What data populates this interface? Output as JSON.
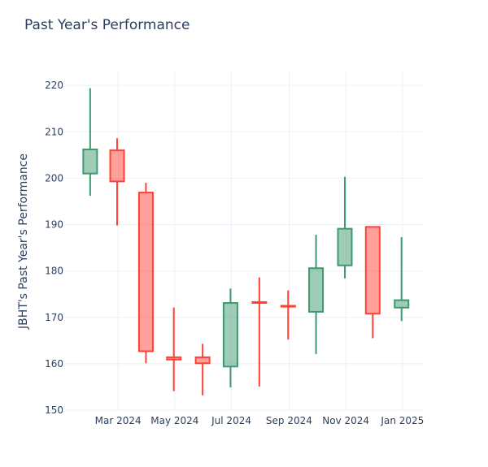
{
  "title": "Past Year's Performance",
  "chart_data": {
    "type": "candlestick",
    "title": "Past Year's Performance",
    "xlabel": "",
    "ylabel": "JBHT's Past Year's Performance",
    "ylim": [
      150,
      223
    ],
    "yticks": [
      150,
      160,
      170,
      180,
      190,
      200,
      210,
      220
    ],
    "xlim": [
      "2024-01-04",
      "2025-01-23"
    ],
    "xticks": [
      {
        "date": "2024-03-01",
        "label": "Mar 2024"
      },
      {
        "date": "2024-05-01",
        "label": "May 2024"
      },
      {
        "date": "2024-07-01",
        "label": "Jul 2024"
      },
      {
        "date": "2024-09-01",
        "label": "Sep 2024"
      },
      {
        "date": "2024-11-01",
        "label": "Nov 2024"
      },
      {
        "date": "2025-01-01",
        "label": "Jan 2025"
      }
    ],
    "grid": true,
    "increasing_color": "#3D9970",
    "decreasing_color": "#FF4136",
    "candles": [
      {
        "date": "2024-01-31",
        "open": 201.0,
        "high": 219.4,
        "low": 196.2,
        "close": 206.2
      },
      {
        "date": "2024-02-29",
        "open": 206.0,
        "high": 208.6,
        "low": 189.8,
        "close": 199.3
      },
      {
        "date": "2024-03-31",
        "open": 196.9,
        "high": 199.0,
        "low": 160.1,
        "close": 162.7
      },
      {
        "date": "2024-04-30",
        "open": 161.4,
        "high": 172.1,
        "low": 154.1,
        "close": 160.9
      },
      {
        "date": "2024-05-31",
        "open": 161.4,
        "high": 164.3,
        "low": 153.2,
        "close": 160.1
      },
      {
        "date": "2024-06-30",
        "open": 159.4,
        "high": 176.2,
        "low": 154.9,
        "close": 173.1
      },
      {
        "date": "2024-07-31",
        "open": 173.3,
        "high": 178.6,
        "low": 155.1,
        "close": 173.1
      },
      {
        "date": "2024-08-31",
        "open": 172.5,
        "high": 175.8,
        "low": 165.2,
        "close": 172.3
      },
      {
        "date": "2024-09-30",
        "open": 171.2,
        "high": 187.8,
        "low": 162.1,
        "close": 180.6
      },
      {
        "date": "2024-10-31",
        "open": 181.2,
        "high": 200.3,
        "low": 178.4,
        "close": 189.1
      },
      {
        "date": "2024-11-30",
        "open": 189.5,
        "high": 189.5,
        "low": 165.5,
        "close": 170.8
      },
      {
        "date": "2024-12-31",
        "open": 172.1,
        "high": 187.3,
        "low": 169.2,
        "close": 173.7
      }
    ]
  }
}
